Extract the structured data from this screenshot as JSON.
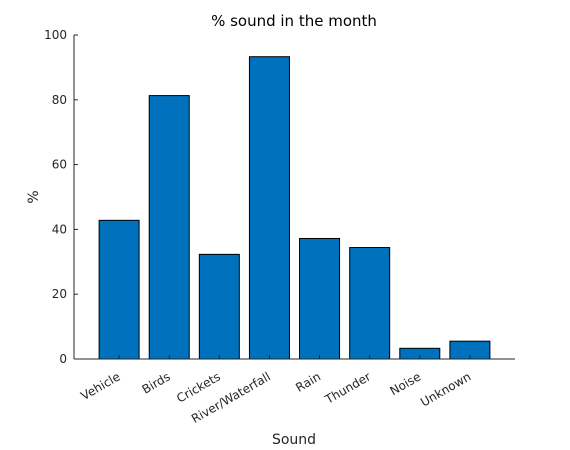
{
  "chart_data": {
    "type": "bar",
    "title": "% sound in the month",
    "xlabel": "Sound",
    "ylabel": "%",
    "categories": [
      "Vehicle",
      "Birds",
      "Crickets",
      "River/Waterfall",
      "Rain",
      "Thunder",
      "Noise",
      "Unknown"
    ],
    "values": [
      42.8,
      81.3,
      32.3,
      93.3,
      37.2,
      34.4,
      3.3,
      5.5
    ],
    "ylim": [
      0,
      100
    ],
    "yticks": [
      0,
      20,
      40,
      60,
      80,
      100
    ],
    "grid": false,
    "legend": "none",
    "bar_color": "#0072BD",
    "bar_edge_color": "#000000"
  }
}
